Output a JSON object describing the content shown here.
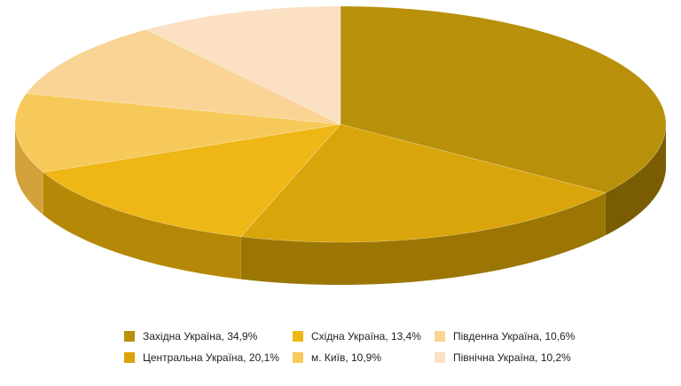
{
  "chart_data": {
    "type": "pie",
    "style": "3d",
    "legend_position": "bottom",
    "slices": [
      {
        "label": "Західна Україна, 34,9%",
        "value": 34.9,
        "color": "#B8900A",
        "side_color": "#7A5C03"
      },
      {
        "label": "Центральна Україна, 20,1%",
        "value": 20.1,
        "color": "#D9A50B",
        "side_color": "#9B7604"
      },
      {
        "label": "Східна Україна, 13,4%",
        "value": 13.4,
        "color": "#EFB715",
        "side_color": "#B58808"
      },
      {
        "label": "м. Київ, 10,9%",
        "value": 10.9,
        "color": "#F7C95A",
        "side_color": "#D3A23A"
      },
      {
        "label": "Південна Україна, 10,6%",
        "value": 10.6,
        "color": "#F9D494",
        "side_color": "#D9B372"
      },
      {
        "label": "Північна Україна, 10,2%",
        "value": 10.2,
        "color": "#FBE0C4",
        "side_color": "#E0C29F"
      }
    ],
    "legend_order": [
      0,
      2,
      4,
      1,
      3,
      5
    ]
  }
}
